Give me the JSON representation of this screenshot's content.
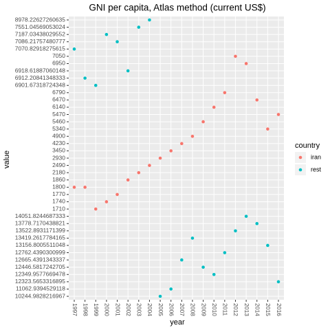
{
  "chart_data": {
    "type": "scatter",
    "title": "GNI per capita, Atlas method (current US$)",
    "x_label": "year",
    "y_label": "value",
    "legend_title": "country",
    "x": [
      1997,
      1998,
      1999,
      2000,
      2001,
      2002,
      2003,
      2004,
      2005,
      2006,
      2007,
      2008,
      2009,
      2010,
      2011,
      2012,
      2013,
      2014,
      2015,
      2016
    ],
    "xticks": [
      1997,
      1998,
      1999,
      2000,
      2001,
      2002,
      2003,
      2004,
      2005,
      2006,
      2007,
      2008,
      2009,
      2010,
      2011,
      2012,
      2013,
      2014,
      2015,
      2016
    ],
    "yticks": [
      8978.22627260635,
      7551.04569053024,
      7187.03438029552,
      7086.21757480777,
      7070.82918275615,
      7050,
      6950,
      6918.61887060148,
      6912.20841348333,
      6901.67318724348,
      6790,
      6470,
      6140,
      5470,
      5460,
      5340,
      4900,
      4230,
      3450,
      2930,
      2490,
      2180,
      1860,
      1800,
      1770,
      1740,
      1710,
      14051.8244687333,
      13778.7170438821,
      13522.8931171399,
      13419.2617784165,
      13156.8005511048,
      12762.4390300999,
      12665.4391343337,
      12446.5817242705,
      12349.9577669478,
      12323.5653316895,
      11062.9394529118,
      10244.9828216967
    ],
    "grid": true,
    "series": [
      {
        "name": "iran",
        "color": "#F8766D",
        "values": [
          1800,
          1800,
          1710,
          1740,
          1770,
          1860,
          2180,
          2490,
          2930,
          3450,
          4230,
          4900,
          5460,
          6140,
          6790,
          7050,
          6950,
          6470,
          5340,
          5470
        ]
      },
      {
        "name": "rest",
        "color": "#00BFC4",
        "values": [
          7070.82918275615,
          6912.20841348333,
          6901.67318724348,
          7187.03438029552,
          7086.21757480777,
          6918.61887060148,
          7551.04569053024,
          8978.22627260635,
          10244.9828216967,
          11062.9394529118,
          12665.4391343337,
          13419.2617784165,
          12446.5817242705,
          12349.9577669478,
          12762.4390300999,
          13522.8931171399,
          14051.8244687333,
          13778.7170438821,
          13156.8005511048,
          12323.5653316895
        ]
      }
    ]
  }
}
